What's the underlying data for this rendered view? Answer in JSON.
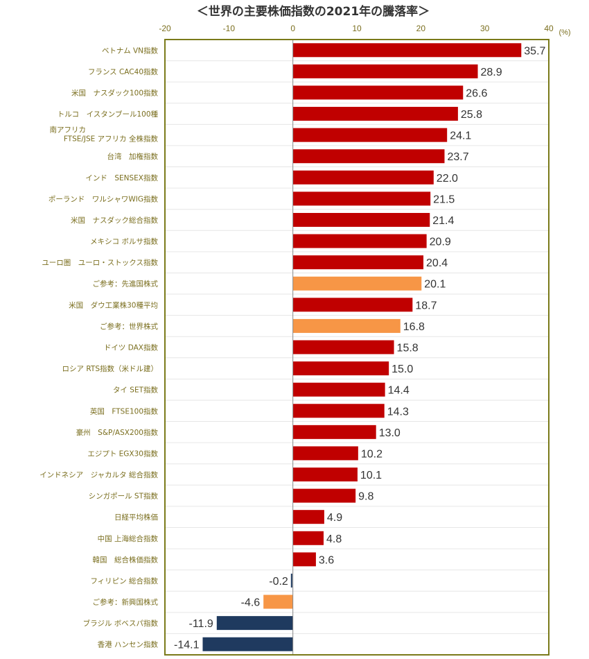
{
  "chart_data": {
    "type": "bar",
    "orientation": "horizontal",
    "title": "＜世界の主要株価指数の2021年の騰落率＞",
    "unit": "(%)",
    "xlim": [
      -20,
      40
    ],
    "xticks": [
      -20,
      -10,
      0,
      10,
      20,
      30,
      40
    ],
    "colors": {
      "positive": "#c00000",
      "reference": "#f79646",
      "negative": "#1f3a5f",
      "frame": "#7a7a1a"
    },
    "categories": [
      "ベトナム VN指数",
      "フランス CAC40指数",
      "米国　ナスダック100指数",
      "トルコ　イスタンブール100種",
      "南アフリカ\nFTSE/JSE アフリカ 全株指数",
      "台湾　加権指数",
      "インド　SENSEX指数",
      "ポーランド　ワルシャワWIG指数",
      "米国　ナスダック総合指数",
      "メキシコ ボルサ指数",
      "ユーロ圏　ユーロ・ストックス指数",
      "ご参考：先進国株式",
      "米国　ダウ工業株30種平均",
      "ご参考：世界株式",
      "ドイツ DAX指数",
      "ロシア RTS指数（米ドル建）",
      "タイ SET指数",
      "英国　FTSE100指数",
      "豪州　S&P/ASX200指数",
      "エジプト EGX30指数",
      "インドネシア　ジャカルタ 総合指数",
      "シンガポール ST指数",
      "日経平均株価",
      "中国 上海総合指数",
      "韓国　総合株価指数",
      "フィリピン 総合指数",
      "ご参考：新興国株式",
      "ブラジル ボベスパ指数",
      "香港 ハンセン指数"
    ],
    "values": [
      35.7,
      28.9,
      26.6,
      25.8,
      24.1,
      23.7,
      22.0,
      21.5,
      21.4,
      20.9,
      20.4,
      20.1,
      18.7,
      16.8,
      15.8,
      15.0,
      14.4,
      14.3,
      13.0,
      10.2,
      10.1,
      9.8,
      4.9,
      4.8,
      3.6,
      -0.2,
      -4.6,
      -11.9,
      -14.1
    ],
    "labels": [
      "35.7",
      "28.9",
      "26.6",
      "25.8",
      "24.1",
      "23.7",
      "22.0",
      "21.5",
      "21.4",
      "20.9",
      "20.4",
      "20.1",
      "18.7",
      "16.8",
      "15.8",
      "15.0",
      "14.4",
      "14.3",
      "13.0",
      "10.2",
      "10.1",
      "9.8",
      "4.9",
      "4.8",
      "3.6",
      "-0.2",
      "-4.6",
      "-11.9",
      "-14.1"
    ],
    "is_reference": [
      false,
      false,
      false,
      false,
      false,
      false,
      false,
      false,
      false,
      false,
      false,
      true,
      false,
      true,
      false,
      false,
      false,
      false,
      false,
      false,
      false,
      false,
      false,
      false,
      false,
      false,
      true,
      false,
      false
    ]
  }
}
